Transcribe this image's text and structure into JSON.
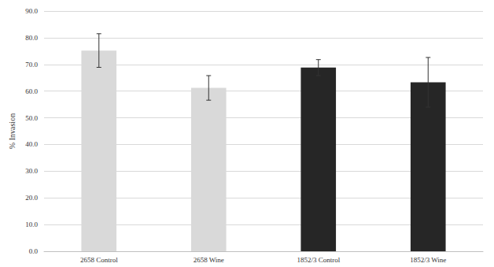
{
  "chart_data": {
    "type": "bar",
    "y_label": "% Invasion",
    "categories": [
      "2658 Control",
      "2658 Wine",
      "1852/3 Control",
      "1852/3 Wine"
    ],
    "values": [
      75.2,
      61.2,
      68.8,
      63.3
    ],
    "errors": [
      6.3,
      4.6,
      3.0,
      9.3
    ],
    "colors": [
      "#d9d9d9",
      "#d9d9d9",
      "#262626",
      "#262626"
    ],
    "ylim": [
      0,
      90
    ],
    "yticks": [
      {
        "value": 0,
        "label": "0.0"
      },
      {
        "value": 10,
        "label": "10.0"
      },
      {
        "value": 20,
        "label": "20.0"
      },
      {
        "value": 30,
        "label": "30.0"
      },
      {
        "value": 40,
        "label": "40.0"
      },
      {
        "value": 50,
        "label": "50.0"
      },
      {
        "value": 60,
        "label": "60.0"
      },
      {
        "value": 70,
        "label": "70.0"
      },
      {
        "value": 80,
        "label": "80.0"
      },
      {
        "value": 90,
        "label": "90.0"
      }
    ],
    "grid": true
  }
}
